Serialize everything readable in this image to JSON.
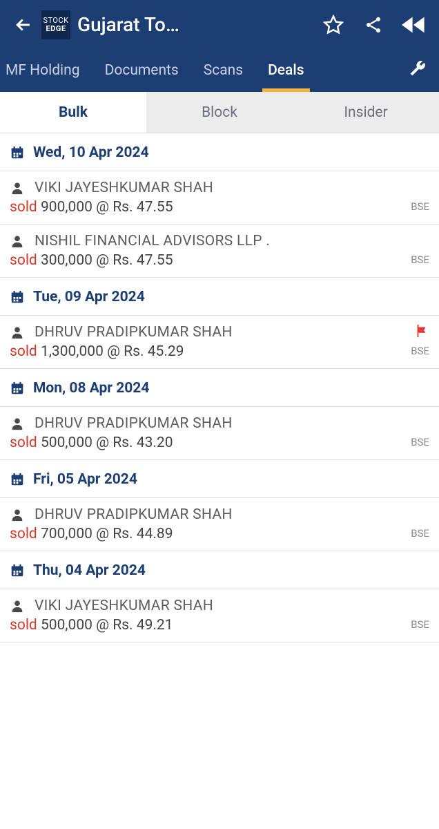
{
  "colors": {
    "header_bg": "#1d3e73",
    "accent": "#f3b43c",
    "sold": "#d13a2a",
    "flag": "#e53935",
    "subtab_inactive_bg": "#ececec",
    "text_muted": "#5d5d5d"
  },
  "header": {
    "logo_line1": "STOCK",
    "logo_line2": "EDGE",
    "title": "Gujarat To…"
  },
  "nav": {
    "tabs": [
      "MF Holding",
      "Documents",
      "Scans",
      "Deals"
    ],
    "active_index": 3
  },
  "sub_tabs": {
    "items": [
      "Bulk",
      "Block",
      "Insider"
    ],
    "active_index": 0
  },
  "groups": [
    {
      "date": "Wed, 10 Apr 2024",
      "deals": [
        {
          "name": "VIKI JAYESHKUMAR SHAH",
          "action": "sold",
          "qty": "900,000",
          "price": "47.55",
          "exchange": "BSE",
          "flag": false
        },
        {
          "name": "NISHIL FINANCIAL ADVISORS LLP .",
          "action": "sold",
          "qty": "300,000",
          "price": "47.55",
          "exchange": "BSE",
          "flag": false
        }
      ]
    },
    {
      "date": "Tue, 09 Apr 2024",
      "deals": [
        {
          "name": "DHRUV PRADIPKUMAR SHAH",
          "action": "sold",
          "qty": "1,300,000",
          "price": "45.29",
          "exchange": "BSE",
          "flag": true
        }
      ]
    },
    {
      "date": "Mon, 08 Apr 2024",
      "deals": [
        {
          "name": "DHRUV PRADIPKUMAR SHAH",
          "action": "sold",
          "qty": "500,000",
          "price": "43.20",
          "exchange": "BSE",
          "flag": false
        }
      ]
    },
    {
      "date": "Fri, 05 Apr 2024",
      "deals": [
        {
          "name": "DHRUV PRADIPKUMAR SHAH",
          "action": "sold",
          "qty": "700,000",
          "price": "44.89",
          "exchange": "BSE",
          "flag": false
        }
      ]
    },
    {
      "date": "Thu, 04 Apr 2024",
      "deals": [
        {
          "name": "VIKI JAYESHKUMAR SHAH",
          "action": "sold",
          "qty": "500,000",
          "price": "49.21",
          "exchange": "BSE",
          "flag": false
        }
      ]
    }
  ],
  "labels": {
    "at": "@",
    "rs": "Rs."
  }
}
